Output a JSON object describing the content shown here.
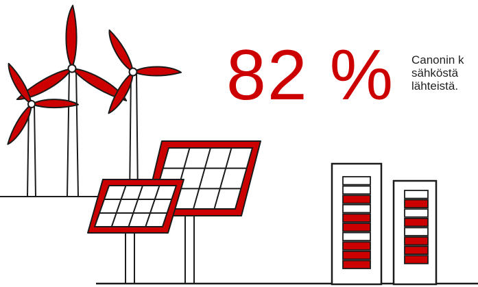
{
  "statistic": {
    "value": "82 %",
    "caption_lines": [
      "Canonin k",
      "sähköstä",
      "lähteistä."
    ]
  },
  "colors": {
    "accent": "#cc0000",
    "line": "#1a1a1a",
    "background": "#ffffff",
    "text": "#222222"
  },
  "illustration": {
    "wind_turbines": 3,
    "solar_panels": 2,
    "battery_towers": [
      {
        "name": "tall",
        "cells": 10,
        "filled": [
          0,
          0,
          1,
          0,
          1,
          1,
          0,
          1,
          1,
          1
        ]
      },
      {
        "name": "short",
        "cells": 8,
        "filled": [
          0,
          1,
          0,
          1,
          0,
          1,
          1,
          1
        ]
      }
    ],
    "icons": [
      "wind-turbine-icon",
      "solar-panel-icon",
      "battery-tower-icon"
    ]
  }
}
